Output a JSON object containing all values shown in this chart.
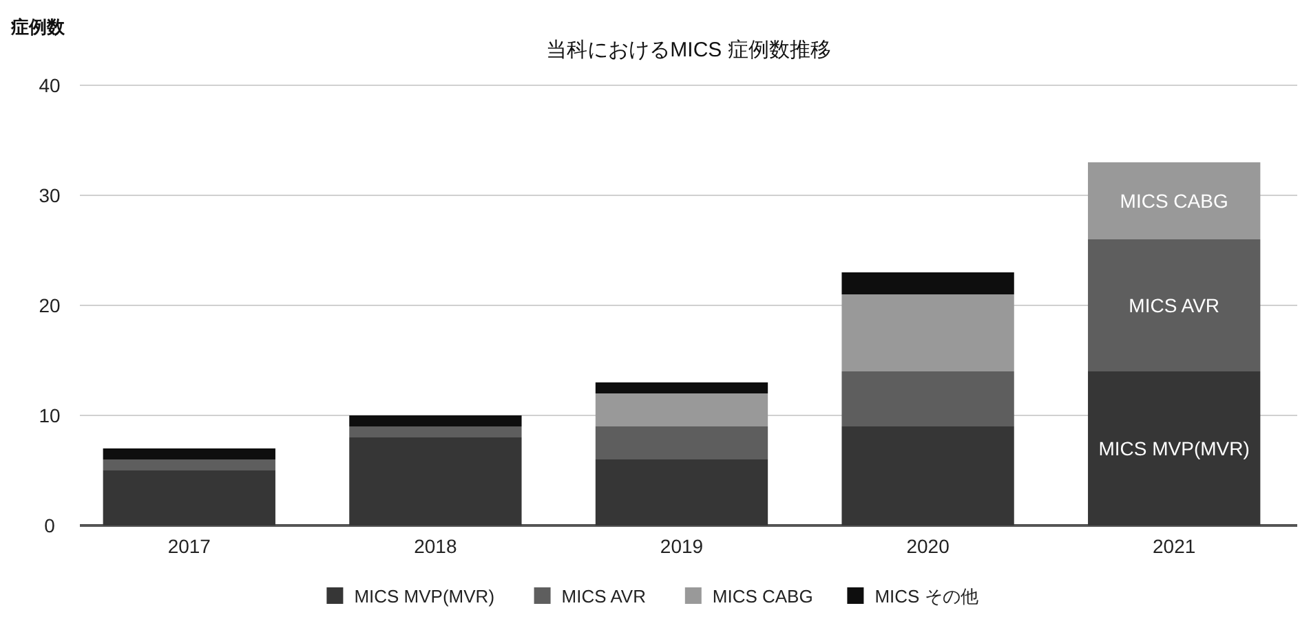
{
  "chart_data": {
    "type": "bar",
    "title": "当科におけるMICS 症例数推移",
    "ylabel": "症例数",
    "categories": [
      "2017",
      "2018",
      "2019",
      "2020",
      "2021"
    ],
    "stacked": true,
    "series": [
      {
        "name": "MICS MVP(MVR)",
        "color": "#363636",
        "values": [
          5,
          8,
          6,
          9,
          14
        ],
        "value_labels": [
          null,
          null,
          null,
          null,
          "MICS MVP(MVR)"
        ]
      },
      {
        "name": "MICS AVR",
        "color": "#5e5e5e",
        "values": [
          1,
          1,
          3,
          5,
          12
        ],
        "value_labels": [
          null,
          null,
          null,
          null,
          "MICS AVR"
        ]
      },
      {
        "name": "MICS CABG",
        "color": "#999999",
        "values": [
          0,
          0,
          3,
          7,
          7
        ],
        "value_labels": [
          null,
          null,
          null,
          null,
          "MICS CABG"
        ]
      },
      {
        "name": "MICS その他",
        "color": "#0e0e0e",
        "values": [
          1,
          1,
          1,
          2,
          0
        ]
      }
    ],
    "ylim": [
      0,
      40
    ],
    "yticks": [
      0,
      10,
      20,
      30,
      40
    ],
    "grid": "y",
    "legend": "bottom"
  }
}
